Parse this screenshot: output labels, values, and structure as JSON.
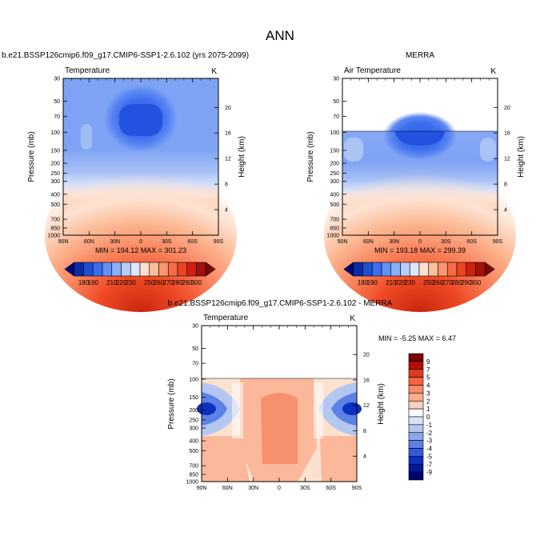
{
  "figure": {
    "main_title": "ANN"
  },
  "panels": {
    "model": {
      "title": "b.e21.BSSP126cmip6.f09_g17.CMIP6-SSP1-2.6.102 (yrs 2075-2099)",
      "var_label": "Temperature",
      "units": "K",
      "stats": "MIN = 194.12   MAX = 301.23"
    },
    "obs": {
      "title": "MERRA",
      "var_label": "Air Temperature",
      "units": "K",
      "stats": "MIN = 193.18   MAX = 299.39"
    },
    "diff": {
      "title": "b.e21.BSSP126cmip6.f09_g17.CMIP6-SSP1-2.6.102 - MERRA",
      "var_label": "Temperature",
      "units": "K",
      "stats": "MIN =  -5.25   MAX =   6.47"
    }
  },
  "axes": {
    "ylabel": "Pressure (mb)",
    "y2label": "Height (km)",
    "x_ticks": [
      "90N",
      "60N",
      "30N",
      "0",
      "30S",
      "60S",
      "90S"
    ],
    "p_ticks": [
      "30",
      "50",
      "70",
      "100",
      "150",
      "200",
      "250",
      "300",
      "400",
      "500",
      "700",
      "850",
      "1000"
    ],
    "h_ticks_top": [
      "20",
      "16",
      "12",
      "8",
      "4"
    ],
    "h_ticks_diff": [
      "20",
      "16",
      "12",
      "8",
      "4"
    ]
  },
  "colorbars": {
    "abs": {
      "labels": [
        "180",
        "190",
        "200",
        "210",
        "220",
        "230",
        "240",
        "250",
        "260",
        "270",
        "280",
        "290",
        "300"
      ],
      "colors": [
        "#00007f",
        "#0b2aa6",
        "#1f4fd1",
        "#3c6ef0",
        "#6190f5",
        "#8aaef7",
        "#b6cdf8",
        "#dde6fa",
        "#fde0cf",
        "#fcbf9d",
        "#fb9871",
        "#f86b47",
        "#ed4423",
        "#d2200e",
        "#a3110a",
        "#7a0a05"
      ]
    },
    "diff": {
      "labels": [
        "9",
        "7",
        "5",
        "4",
        "3",
        "2",
        "1",
        "0",
        "-1",
        "-2",
        "-3",
        "-4",
        "-5",
        "-7",
        "-9"
      ],
      "colors": [
        "#7a0000",
        "#b0120a",
        "#de3a1c",
        "#f5633c",
        "#f98b66",
        "#fbae8f",
        "#fdd0ba",
        "#ffffff",
        "#d8e3f7",
        "#b4c7f1",
        "#8aa5eb",
        "#5e81e5",
        "#3158d8",
        "#0e30c0",
        "#001a99",
        "#000070"
      ]
    }
  },
  "chart_data": [
    {
      "type": "heatmap",
      "title": "b.e21.BSSP126cmip6.f09_g17.CMIP6-SSP1-2.6.102 (yrs 2075-2099)",
      "variable": "Temperature",
      "units": "K",
      "xlabel": "",
      "ylabel": "Pressure (mb)",
      "y2label": "Height (km)",
      "x_range": [
        -90,
        90
      ],
      "p_range": [
        30,
        1000
      ],
      "y_scale": "log",
      "min": 194.12,
      "max": 301.23,
      "contour_levels": [
        180,
        185,
        190,
        195,
        200,
        205,
        210,
        215,
        220,
        230,
        240,
        250,
        260,
        270,
        280,
        290,
        300
      ]
    },
    {
      "type": "heatmap",
      "title": "MERRA",
      "variable": "Air Temperature",
      "units": "K",
      "xlabel": "",
      "ylabel": "Pressure (mb)",
      "y2label": "Height (km)",
      "x_range": [
        -90,
        90
      ],
      "p_range": [
        30,
        1000
      ],
      "data_p_top": 100,
      "y_scale": "log",
      "min": 193.18,
      "max": 299.39
    },
    {
      "type": "heatmap",
      "title": "b.e21.BSSP126cmip6.f09_g17.CMIP6-SSP1-2.6.102 - MERRA",
      "variable": "Temperature",
      "units": "K",
      "xlabel": "",
      "ylabel": "Pressure (mb)",
      "y2label": "Height (km)",
      "x_range": [
        -90,
        90
      ],
      "p_range": [
        30,
        1000
      ],
      "data_p_top": 100,
      "y_scale": "log",
      "min": -5.25,
      "max": 6.47,
      "contour_levels": [
        -9,
        -7,
        -5,
        -4,
        -3,
        -2,
        -1,
        0,
        1,
        2,
        3,
        4,
        5,
        7,
        9
      ]
    }
  ]
}
